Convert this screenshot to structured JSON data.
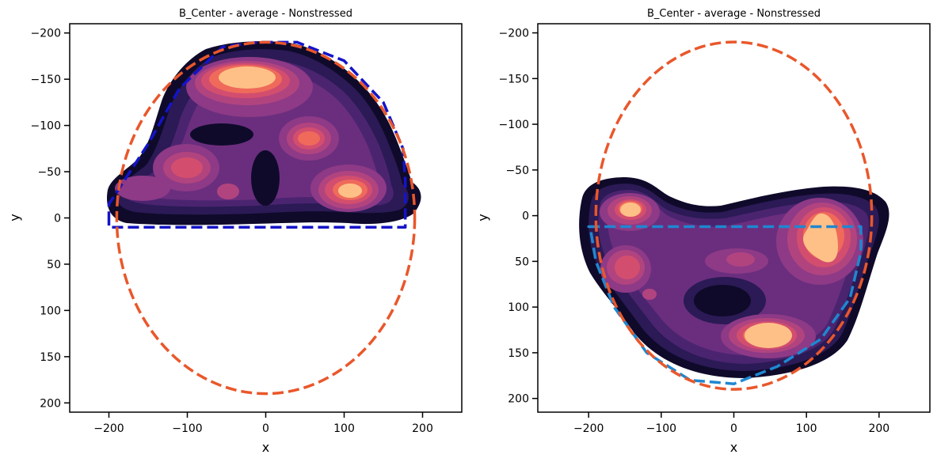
{
  "chart_data": [
    {
      "type": "kde-contour",
      "title": "B_Center - average - Nonstressed",
      "xlabel": "x",
      "ylabel": "y",
      "xlim": [
        -250,
        250
      ],
      "ylim": [
        210,
        -210
      ],
      "y_inverted": true,
      "xticks": [
        -200,
        -100,
        0,
        100,
        200
      ],
      "yticks": [
        -200,
        -150,
        -100,
        -50,
        0,
        50,
        100,
        150,
        200
      ],
      "palette": [
        "#0f0a2a",
        "#2b1a55",
        "#4b2470",
        "#6b2e7e",
        "#8e3a86",
        "#b1447f",
        "#d34e6e",
        "#ef6a5a",
        "#ffc087"
      ],
      "reference_ellipse": {
        "center": [
          0,
          0
        ],
        "rx": 190,
        "ry": 190,
        "color": "#e9572b"
      },
      "fitted_boundary": {
        "color": "#1414c8",
        "points": [
          [
            -200,
            5
          ],
          [
            -200,
            -15
          ],
          [
            -150,
            -80
          ],
          [
            -110,
            -140
          ],
          [
            -55,
            -185
          ],
          [
            -10,
            -190
          ],
          [
            40,
            -190
          ],
          [
            100,
            -170
          ],
          [
            150,
            -125
          ],
          [
            175,
            -75
          ],
          [
            178,
            -40
          ],
          [
            178,
            10
          ],
          [
            -200,
            10
          ]
        ]
      },
      "density_peaks": [
        {
          "x": -30,
          "y": -150,
          "rx": 70,
          "ry": 25,
          "weight": 1.0
        },
        {
          "x": 110,
          "y": -30,
          "rx": 35,
          "ry": 18,
          "weight": 0.95
        },
        {
          "x": 60,
          "y": -85,
          "rx": 25,
          "ry": 14,
          "weight": 0.7
        },
        {
          "x": -95,
          "y": -55,
          "rx": 30,
          "ry": 18,
          "weight": 0.6
        },
        {
          "x": -45,
          "y": -30,
          "rx": 25,
          "ry": 15,
          "weight": 0.4
        },
        {
          "x": -150,
          "y": -35,
          "rx": 30,
          "ry": 15,
          "weight": 0.35
        }
      ]
    },
    {
      "type": "kde-contour",
      "title": "B_Center - average - Nonstressed",
      "xlabel": "x",
      "ylabel": "y",
      "xlim": [
        -270,
        270
      ],
      "ylim": [
        215,
        -210
      ],
      "y_inverted": true,
      "xticks": [
        -200,
        -100,
        0,
        100,
        200
      ],
      "yticks": [
        -200,
        -150,
        -100,
        -50,
        0,
        50,
        100,
        150,
        200
      ],
      "palette": [
        "#0f0a2a",
        "#2b1a55",
        "#4b2470",
        "#6b2e7e",
        "#8e3a86",
        "#b1447f",
        "#d34e6e",
        "#ef6a5a",
        "#ffc087"
      ],
      "reference_ellipse": {
        "center": [
          0,
          0
        ],
        "rx": 190,
        "ry": 190,
        "color": "#e9572b"
      },
      "fitted_boundary": {
        "color": "#1f87d0",
        "points": [
          [
            -200,
            12
          ],
          [
            175,
            12
          ],
          [
            175,
            40
          ],
          [
            160,
            90
          ],
          [
            120,
            135
          ],
          [
            60,
            165
          ],
          [
            0,
            184
          ],
          [
            -60,
            180
          ],
          [
            -120,
            150
          ],
          [
            -165,
            100
          ],
          [
            -190,
            50
          ],
          [
            -198,
            12
          ]
        ]
      },
      "density_peaks": [
        {
          "x": 130,
          "y": 25,
          "rx": 30,
          "ry": 40,
          "weight": 1.0
        },
        {
          "x": 50,
          "y": 130,
          "rx": 45,
          "ry": 18,
          "weight": 1.0
        },
        {
          "x": -140,
          "y": -5,
          "rx": 25,
          "ry": 12,
          "weight": 0.95
        },
        {
          "x": -140,
          "y": 55,
          "rx": 22,
          "ry": 18,
          "weight": 0.7
        },
        {
          "x": 10,
          "y": 50,
          "rx": 30,
          "ry": 15,
          "weight": 0.45
        },
        {
          "x": -110,
          "y": 85,
          "rx": 12,
          "ry": 10,
          "weight": 0.5
        }
      ]
    }
  ]
}
